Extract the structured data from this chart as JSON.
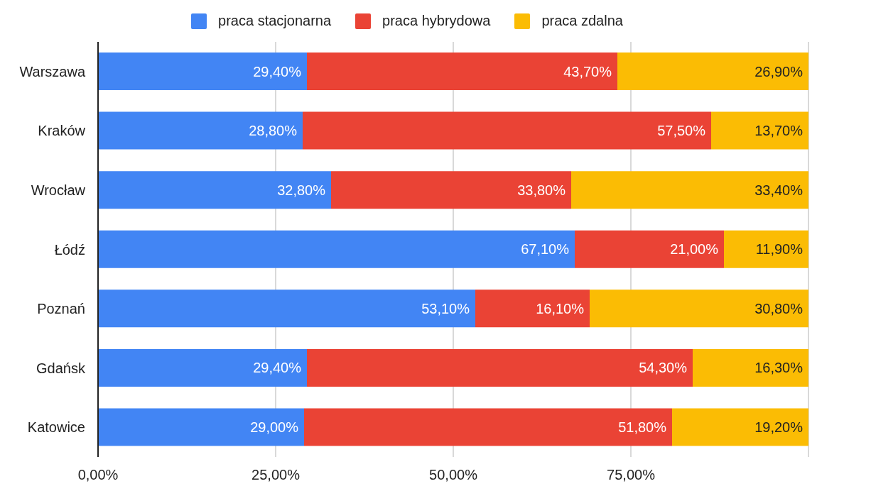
{
  "chart_data": {
    "type": "bar",
    "orientation": "horizontal",
    "stacked": true,
    "categories": [
      "Warszawa",
      "Kraków",
      "Wrocław",
      "Łódź",
      "Poznań",
      "Gdańsk",
      "Katowice"
    ],
    "series": [
      {
        "name": "praca stacjonarna",
        "color": "#4285f4",
        "values": [
          29.4,
          28.8,
          32.8,
          67.1,
          53.1,
          29.4,
          29.0
        ],
        "value_labels": [
          "29,40%",
          "28,80%",
          "32,80%",
          "67,10%",
          "53,10%",
          "29,40%",
          "29,00%"
        ]
      },
      {
        "name": "praca hybrydowa",
        "color": "#ea4335",
        "values": [
          43.7,
          57.5,
          33.8,
          21.0,
          16.1,
          54.3,
          51.8
        ],
        "value_labels": [
          "43,70%",
          "57,50%",
          "33,80%",
          "21,00%",
          "16,10%",
          "54,30%",
          "51,80%"
        ]
      },
      {
        "name": "praca zdalna",
        "color": "#fbbc04",
        "values": [
          26.9,
          13.7,
          33.4,
          11.9,
          30.8,
          16.3,
          19.2
        ],
        "value_labels": [
          "26,90%",
          "13,70%",
          "33,40%",
          "11,90%",
          "30,80%",
          "16,30%",
          "19,20%"
        ]
      }
    ],
    "xlim": [
      0,
      100
    ],
    "xticks": [
      {
        "value": 0,
        "label": "0,00%"
      },
      {
        "value": 25,
        "label": "25,00%"
      },
      {
        "value": 50,
        "label": "50,00%"
      },
      {
        "value": 75,
        "label": "75,00%"
      },
      {
        "value": 100,
        "label": null
      }
    ],
    "grid": "x",
    "legend": "top"
  }
}
